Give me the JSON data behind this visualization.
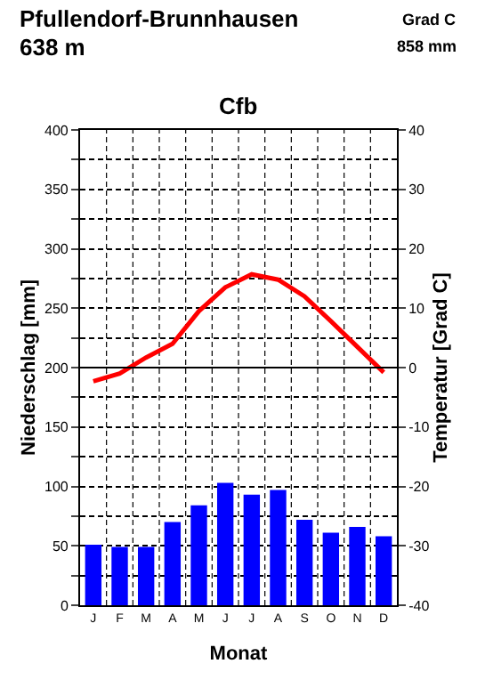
{
  "chart_data": {
    "type": "bar",
    "title": "Pfullendorf-Brunnhausen",
    "subtitle": "638 m",
    "annotations": [
      "Grad C",
      "858 mm",
      "Cfb"
    ],
    "xlabel": "Monat",
    "ylabel": "Niederschlag [mm]",
    "y2label": "Temperatur [Grad C]",
    "categories": [
      "J",
      "F",
      "M",
      "A",
      "M",
      "J",
      "J",
      "A",
      "S",
      "O",
      "N",
      "D"
    ],
    "series": [
      {
        "color": "#0000ff",
        "values": [
          51,
          49,
          49,
          70,
          84,
          103,
          93,
          97,
          72,
          61,
          66,
          58
        ]
      },
      {
        "type": "line",
        "axis": "y2",
        "color": "#ff0000",
        "values": [
          -2.3,
          -1.0,
          1.7,
          4.0,
          9.5,
          13.5,
          15.7,
          14.8,
          12.0,
          7.8,
          3.5,
          -0.8
        ]
      }
    ],
    "ylim": [
      0,
      400
    ],
    "yticks": [
      0,
      {
        "value": 25,
        "label": null
      },
      50,
      {
        "value": 75,
        "label": null
      },
      100,
      {
        "value": 125,
        "label": null
      },
      150,
      {
        "value": 175,
        "label": null
      },
      200,
      {
        "value": 225,
        "label": null
      },
      250,
      {
        "value": 275,
        "label": null
      },
      300,
      {
        "value": 325,
        "label": null
      },
      350,
      {
        "value": 375,
        "label": null
      },
      400
    ],
    "y2lim": [
      -40,
      40
    ],
    "y2ticks": [
      -40,
      -30,
      -20,
      -10,
      0,
      10,
      20,
      30,
      40
    ],
    "ref_lines": [
      {
        "axis": "y2",
        "value": 0,
        "color": "#000000",
        "line_style": "solid"
      }
    ],
    "grid": true,
    "marker": "none",
    "line_style": "solid"
  }
}
